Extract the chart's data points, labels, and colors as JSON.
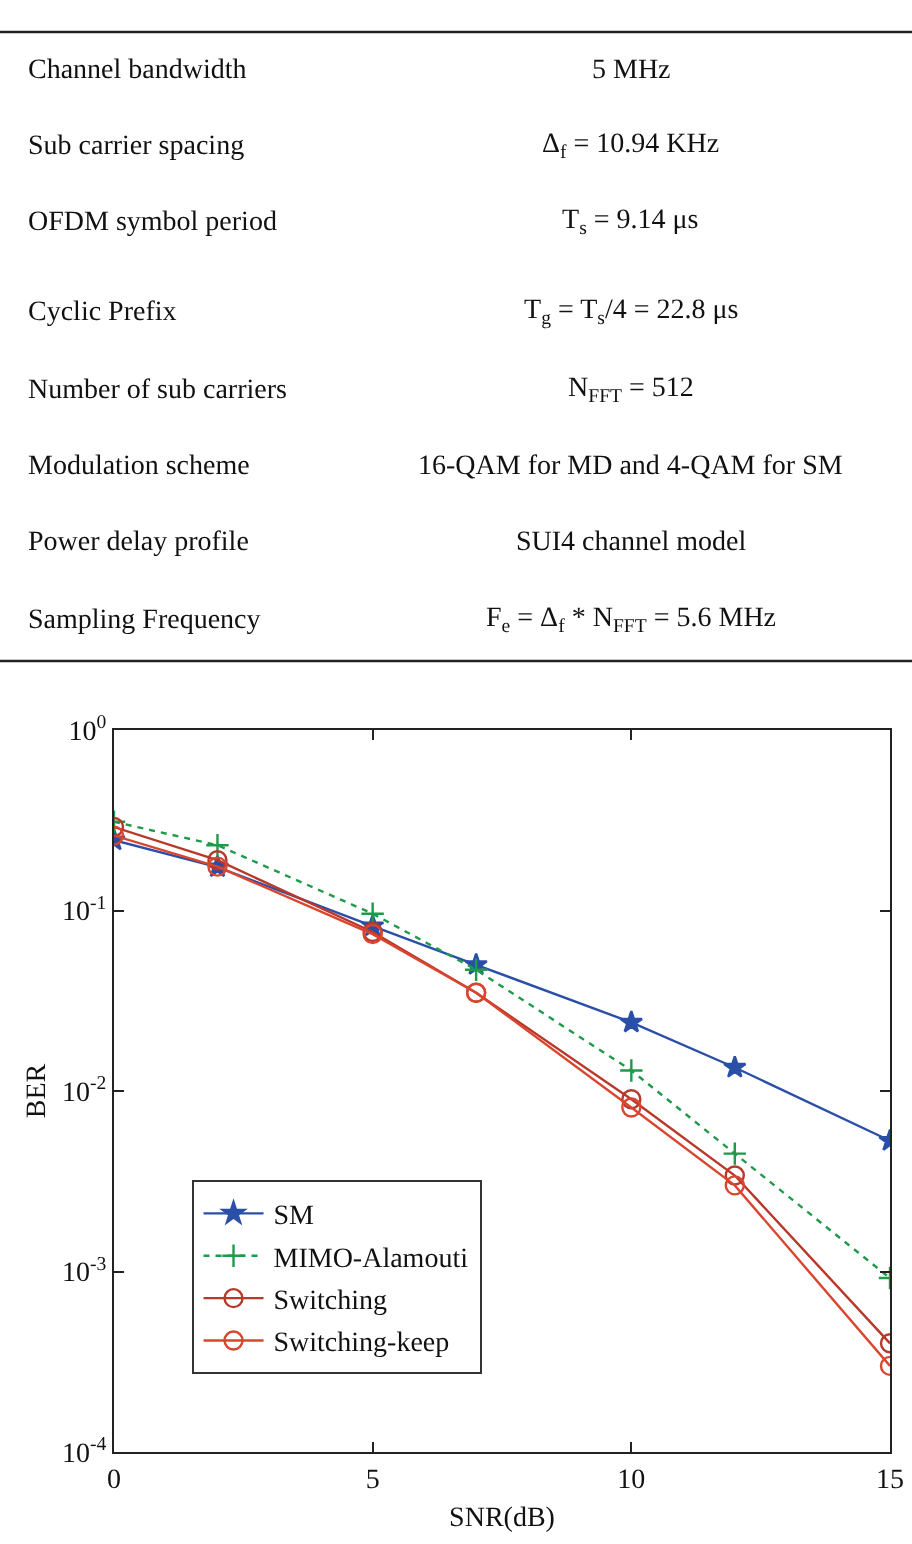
{
  "chart_data": {
    "type": "line",
    "xlabel": "SNR(dB)",
    "ylabel": "BER",
    "annotations": [
      "Channel bandwidth",
      "5 MHz",
      "Sub carrier spacing",
      "Δ$_{f}$ = 10.94 KHz",
      "OFDM symbol period",
      "T$_{s}$ = 9.14 μs",
      "Cyclic Prefix",
      "T$_{g}$ = T$_{s}$/4 = 22.8 μs",
      "Number of sub carriers",
      "N$_{FFT}$ = 512",
      "Modulation scheme",
      "16-QAM for MD and 4-QAM for SM",
      "Power delay profile",
      "SUI4 channel model",
      "Sampling Frequency",
      "F$_{e}$ = Δ$_{f}$ * N$_{FFT}$ = 5.6 MHz"
    ],
    "x": [
      0,
      2,
      5,
      7,
      10,
      12,
      15
    ],
    "series": [
      {
        "name": "SM",
        "color": "#2a4fa8",
        "marker": "star",
        "line_style": "solid",
        "values": [
          0.245,
          0.174,
          0.082,
          0.05,
          0.024,
          0.0135,
          0.0053
        ]
      },
      {
        "name": "MIMO-Alamouti",
        "color": "#1f9a4a",
        "marker": "cross",
        "line_style": "dotted",
        "values": [
          0.31,
          0.23,
          0.096,
          0.047,
          0.013,
          0.0045,
          0.00092
        ]
      },
      {
        "name": "Switching",
        "color": "#b8382a",
        "marker": "circle",
        "line_style": "solid",
        "values": [
          0.29,
          0.19,
          0.076,
          0.035,
          0.009,
          0.0034,
          0.0004
        ]
      },
      {
        "name": "Switching-keep",
        "color": "#d9452f",
        "marker": "circle",
        "line_style": "solid",
        "values": [
          0.26,
          0.175,
          0.074,
          0.035,
          0.0081,
          0.003,
          0.0003
        ]
      }
    ],
    "log": "y",
    "xlim": [
      0,
      15
    ],
    "xticks": [
      0,
      5,
      10,
      15
    ],
    "ylim": [
      0.0001,
      1
    ],
    "yticks": [
      {
        "value": 0.0001,
        "label": "10$^{-4}$"
      },
      {
        "value": 0.001,
        "label": "10$^{-3}$"
      },
      {
        "value": 0.01,
        "label": "10$^{-2}$"
      },
      {
        "value": 0.1,
        "label": "10$^{-1}$"
      },
      {
        "value": 1,
        "label": "10$^{0}$"
      }
    ],
    "grid": false,
    "legend": "bottom left"
  }
}
